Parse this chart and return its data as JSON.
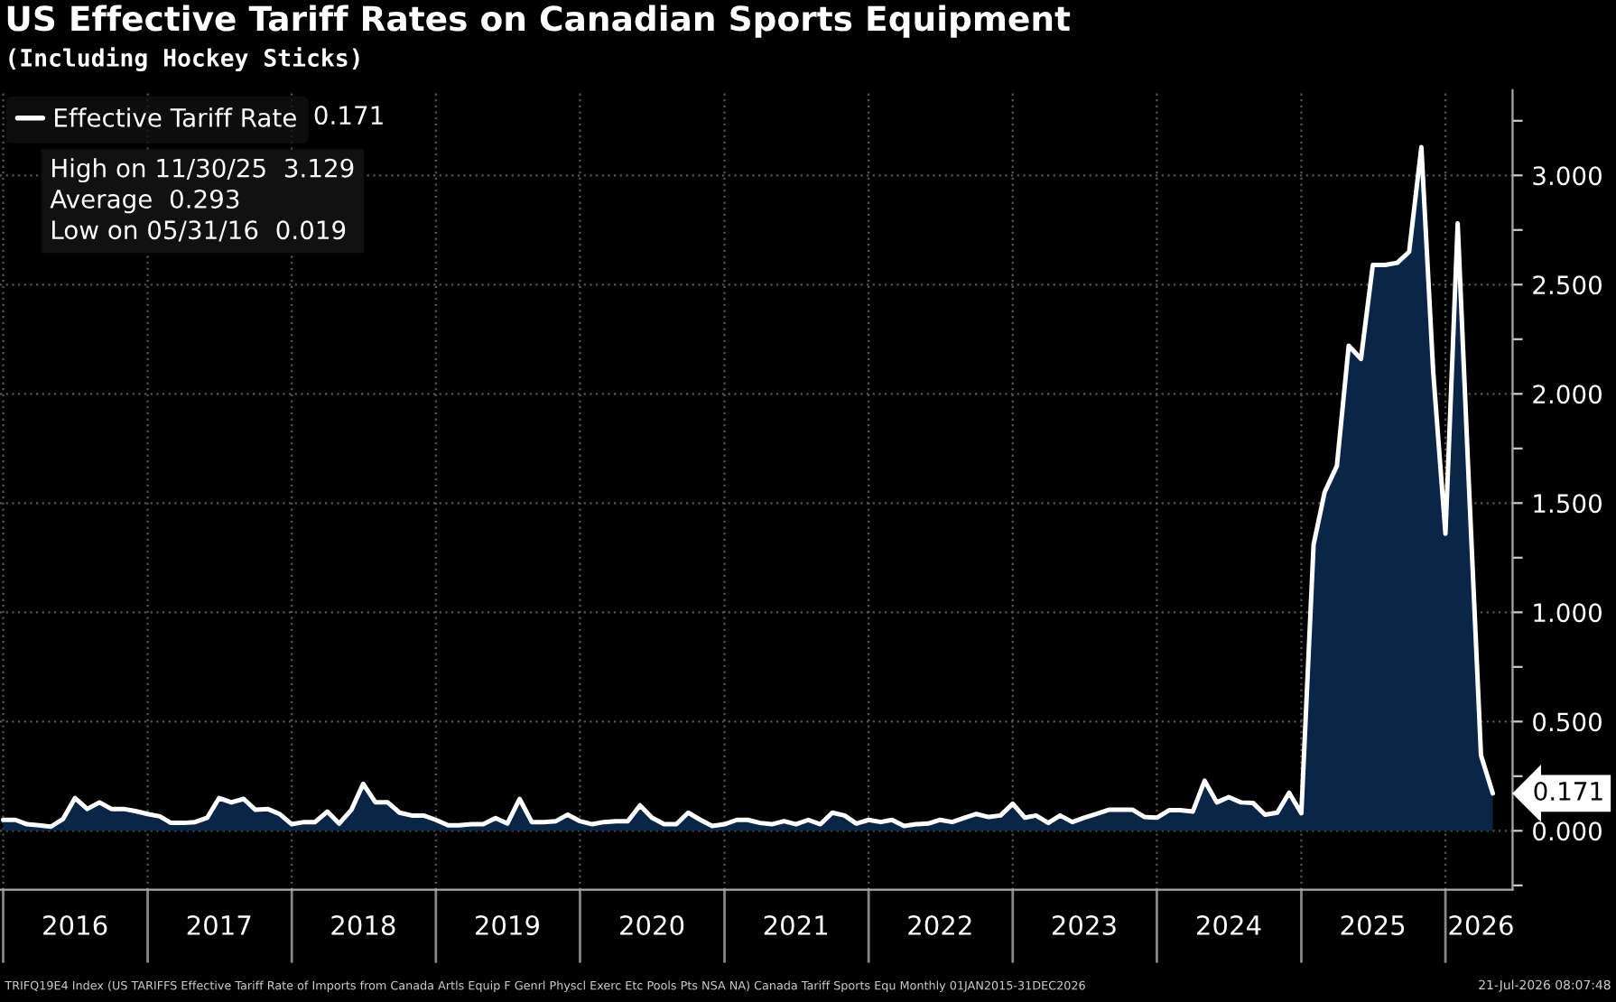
{
  "chart_data": {
    "type": "area",
    "title": "US Effective Tariff Rates on Canadian Sports Equipment",
    "subtitle": "(Including Hockey Sticks)",
    "x": [
      "2016-01",
      "2016-02",
      "2016-03",
      "2016-04",
      "2016-05",
      "2016-06",
      "2016-07",
      "2016-08",
      "2016-09",
      "2016-10",
      "2016-11",
      "2016-12",
      "2017-01",
      "2017-02",
      "2017-03",
      "2017-04",
      "2017-05",
      "2017-06",
      "2017-07",
      "2017-08",
      "2017-09",
      "2017-10",
      "2017-11",
      "2017-12",
      "2018-01",
      "2018-02",
      "2018-03",
      "2018-04",
      "2018-05",
      "2018-06",
      "2018-07",
      "2018-08",
      "2018-09",
      "2018-10",
      "2018-11",
      "2018-12",
      "2019-01",
      "2019-02",
      "2019-03",
      "2019-04",
      "2019-05",
      "2019-06",
      "2019-07",
      "2019-08",
      "2019-09",
      "2019-10",
      "2019-11",
      "2019-12",
      "2020-01",
      "2020-02",
      "2020-03",
      "2020-04",
      "2020-05",
      "2020-06",
      "2020-07",
      "2020-08",
      "2020-09",
      "2020-10",
      "2020-11",
      "2020-12",
      "2021-01",
      "2021-02",
      "2021-03",
      "2021-04",
      "2021-05",
      "2021-06",
      "2021-07",
      "2021-08",
      "2021-09",
      "2021-10",
      "2021-11",
      "2021-12",
      "2022-01",
      "2022-02",
      "2022-03",
      "2022-04",
      "2022-05",
      "2022-06",
      "2022-07",
      "2022-08",
      "2022-09",
      "2022-10",
      "2022-11",
      "2022-12",
      "2023-01",
      "2023-02",
      "2023-03",
      "2023-04",
      "2023-05",
      "2023-06",
      "2023-07",
      "2023-08",
      "2023-09",
      "2023-10",
      "2023-11",
      "2023-12",
      "2024-01",
      "2024-02",
      "2024-03",
      "2024-04",
      "2024-05",
      "2024-06",
      "2024-07",
      "2024-08",
      "2024-09",
      "2024-10",
      "2024-11",
      "2024-12",
      "2025-01",
      "2025-02",
      "2025-03",
      "2025-04",
      "2025-05",
      "2025-06",
      "2025-07",
      "2025-08",
      "2025-09",
      "2025-10",
      "2025-11",
      "2025-12",
      "2026-01",
      "2026-02",
      "2026-03",
      "2026-04",
      "2026-05"
    ],
    "series": [
      {
        "name": "Effective Tariff Rate",
        "color": "#ffffff",
        "values": [
          0.05,
          0.05,
          0.03,
          0.025,
          0.019,
          0.055,
          0.15,
          0.1,
          0.13,
          0.1,
          0.1,
          0.09,
          0.077,
          0.066,
          0.036,
          0.036,
          0.04,
          0.06,
          0.15,
          0.13,
          0.146,
          0.096,
          0.1,
          0.077,
          0.03,
          0.04,
          0.04,
          0.088,
          0.033,
          0.096,
          0.215,
          0.13,
          0.13,
          0.083,
          0.07,
          0.07,
          0.05,
          0.025,
          0.025,
          0.03,
          0.03,
          0.058,
          0.033,
          0.146,
          0.04,
          0.04,
          0.044,
          0.074,
          0.044,
          0.03,
          0.04,
          0.044,
          0.044,
          0.116,
          0.06,
          0.03,
          0.03,
          0.083,
          0.05,
          0.022,
          0.03,
          0.05,
          0.05,
          0.036,
          0.03,
          0.044,
          0.03,
          0.05,
          0.03,
          0.083,
          0.07,
          0.033,
          0.05,
          0.04,
          0.05,
          0.022,
          0.03,
          0.033,
          0.05,
          0.04,
          0.06,
          0.077,
          0.063,
          0.07,
          0.124,
          0.06,
          0.07,
          0.036,
          0.07,
          0.04,
          0.06,
          0.077,
          0.096,
          0.096,
          0.096,
          0.063,
          0.06,
          0.094,
          0.094,
          0.088,
          0.229,
          0.13,
          0.154,
          0.13,
          0.127,
          0.074,
          0.083,
          0.174,
          0.08,
          1.31,
          1.55,
          1.67,
          2.22,
          2.16,
          2.59,
          2.59,
          2.6,
          2.65,
          3.129,
          2.1,
          1.36,
          2.78,
          1.6,
          0.345,
          0.171
        ],
        "value_labels": [
          null,
          null,
          null,
          null,
          null,
          null,
          null,
          null,
          null,
          null,
          null,
          null,
          null,
          null,
          null,
          null,
          null,
          null,
          null,
          null,
          null,
          null,
          null,
          null,
          null,
          null,
          null,
          null,
          null,
          null,
          null,
          null,
          null,
          null,
          null,
          null,
          null,
          null,
          null,
          null,
          null,
          null,
          null,
          null,
          null,
          null,
          null,
          null,
          null,
          null,
          null,
          null,
          null,
          null,
          null,
          null,
          null,
          null,
          null,
          null,
          null,
          null,
          null,
          null,
          null,
          null,
          null,
          null,
          null,
          null,
          null,
          null,
          null,
          null,
          null,
          null,
          null,
          null,
          null,
          null,
          null,
          null,
          null,
          null,
          null,
          null,
          null,
          null,
          null,
          null,
          null,
          null,
          null,
          null,
          null,
          null,
          null,
          null,
          null,
          null,
          null,
          null,
          null,
          null,
          null,
          null,
          null,
          null,
          null,
          null,
          null,
          null,
          null,
          null,
          null,
          null,
          null,
          null,
          null,
          null,
          null,
          null,
          null,
          null,
          "0.171"
        ]
      }
    ],
    "xlim": [
      "2015-12-24",
      "2026-06-20"
    ],
    "xticks": [
      {
        "value": "2016-01-01",
        "label": null
      },
      {
        "value": "2016-07-01",
        "label": "2016"
      },
      {
        "value": "2017-01-01",
        "label": null
      },
      {
        "value": "2017-07-01",
        "label": "2017"
      },
      {
        "value": "2018-01-01",
        "label": null
      },
      {
        "value": "2018-07-01",
        "label": "2018"
      },
      {
        "value": "2019-01-01",
        "label": null
      },
      {
        "value": "2019-07-01",
        "label": "2019"
      },
      {
        "value": "2020-01-01",
        "label": null
      },
      {
        "value": "2020-07-01",
        "label": "2020"
      },
      {
        "value": "2021-01-01",
        "label": null
      },
      {
        "value": "2021-07-01",
        "label": "2021"
      },
      {
        "value": "2022-01-01",
        "label": null
      },
      {
        "value": "2022-07-01",
        "label": "2022"
      },
      {
        "value": "2023-01-01",
        "label": null
      },
      {
        "value": "2023-07-01",
        "label": "2023"
      },
      {
        "value": "2024-01-01",
        "label": null
      },
      {
        "value": "2024-07-01",
        "label": "2024"
      },
      {
        "value": "2025-01-01",
        "label": null
      },
      {
        "value": "2025-07-01",
        "label": "2025"
      },
      {
        "value": "2026-01-01",
        "label": null
      },
      {
        "value": "2026-04-01",
        "label": "2026"
      }
    ],
    "ylim": [
      -0.27,
      3.39
    ],
    "yticks": [
      {
        "value": -0.25,
        "label": null
      },
      {
        "value": 0,
        "label": "0.000"
      },
      {
        "value": 0.25,
        "label": null
      },
      {
        "value": 0.5,
        "label": "0.500"
      },
      {
        "value": 0.75,
        "label": null
      },
      {
        "value": 1,
        "label": "1.000"
      },
      {
        "value": 1.25,
        "label": null
      },
      {
        "value": 1.5,
        "label": "1.500"
      },
      {
        "value": 1.75,
        "label": null
      },
      {
        "value": 2,
        "label": "2.000"
      },
      {
        "value": 2.25,
        "label": null
      },
      {
        "value": 2.5,
        "label": "2.500"
      },
      {
        "value": 2.75,
        "label": null
      },
      {
        "value": 3,
        "label": "3.000"
      },
      {
        "value": 3.25,
        "label": null
      }
    ],
    "grid": true,
    "legend": "top left",
    "annotations": [
      "High on 11/30/25  3.129",
      "Average  0.293",
      "Low on 05/31/16  0.019",
      "TRIFQ19E4 Index (US TARIFFS Effective Tariff Rate of Imports from Canada Artls Equip F Genrl Physcl Exerc Etc Pools Pts NSA NA) Canada Tariff Sports Equ Monthly 01JAN2015-31DEC2026",
      "21-Jul-2026 08:07:48"
    ]
  }
}
